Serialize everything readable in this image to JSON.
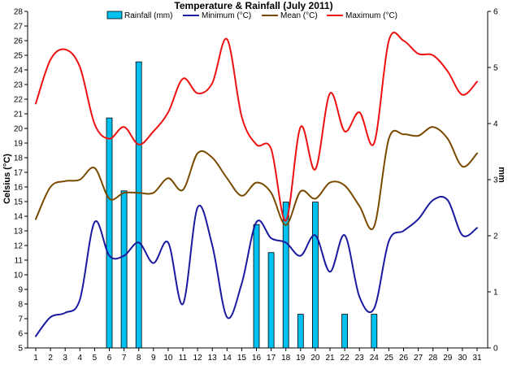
{
  "chart_data": {
    "type": "bar+line",
    "title": "Temperature & Rainfall (July 2011)",
    "ylabel": "Celsius (°C)",
    "y2label": "mm",
    "x": [
      1,
      2,
      3,
      4,
      5,
      6,
      7,
      8,
      9,
      10,
      11,
      12,
      13,
      14,
      15,
      16,
      17,
      18,
      19,
      20,
      21,
      22,
      23,
      24,
      25,
      26,
      27,
      28,
      29,
      30,
      31
    ],
    "ylim": [
      5,
      28
    ],
    "y2lim": [
      0,
      6
    ],
    "grid": false,
    "legend_position": "top",
    "bar_series": {
      "name": "Rainfall (mm)",
      "axis": "right",
      "color": "#00c0f0",
      "values": [
        0,
        0,
        0,
        0,
        0,
        4.1,
        2.8,
        5.1,
        0,
        0,
        0,
        0,
        0,
        0,
        0,
        2.2,
        1.7,
        2.6,
        0.6,
        2.6,
        0,
        0.6,
        0,
        0.6,
        0,
        0,
        0,
        0,
        0,
        0,
        0
      ]
    },
    "series": [
      {
        "name": "Minimum (°C)",
        "color": "#1a1aa0",
        "values": [
          5.8,
          7.1,
          7.4,
          8.3,
          13.6,
          11.3,
          11.3,
          12.2,
          10.8,
          12.2,
          8.0,
          14.6,
          12.0,
          7.1,
          9.4,
          13.6,
          12.5,
          12.2,
          11.3,
          12.7,
          10.2,
          12.7,
          8.5,
          7.7,
          12.3,
          13.0,
          13.8,
          15.1,
          15.1,
          12.7,
          13.2
        ]
      },
      {
        "name": "Mean (°C)",
        "color": "#7a4a00",
        "values": [
          13.8,
          16.0,
          16.4,
          16.5,
          17.3,
          15.2,
          15.6,
          15.6,
          15.6,
          16.6,
          15.8,
          18.3,
          18.0,
          16.6,
          15.4,
          16.3,
          15.6,
          13.4,
          15.7,
          15.2,
          16.3,
          16.1,
          14.7,
          13.3,
          19.3,
          19.6,
          19.5,
          20.1,
          19.3,
          17.4,
          18.3
        ]
      },
      {
        "name": "Maximum (°C)",
        "color": "#ee1111",
        "values": [
          21.7,
          24.7,
          25.4,
          24.2,
          20.3,
          19.3,
          20.1,
          18.9,
          19.8,
          21.1,
          23.4,
          22.4,
          23.1,
          26.1,
          20.8,
          18.9,
          18.6,
          13.7,
          20.1,
          17.2,
          22.4,
          19.8,
          21.1,
          19.0,
          26.0,
          26.0,
          25.1,
          25.0,
          23.9,
          22.3,
          23.2
        ]
      }
    ]
  }
}
